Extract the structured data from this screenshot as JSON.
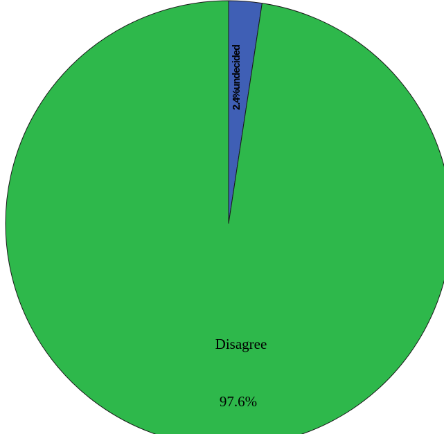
{
  "chart_data": {
    "type": "pie",
    "slices": [
      {
        "name": "undecided",
        "value": 2.4,
        "label_name": "undecided",
        "label_value": "2.4%",
        "color": "#3F5FB5"
      },
      {
        "name": "Disagree",
        "value": 97.6,
        "label_name": "Disagree",
        "label_value": "97.6%",
        "color": "#2EB84B"
      }
    ],
    "start": "12 o'clock",
    "direction": "clockwise"
  }
}
